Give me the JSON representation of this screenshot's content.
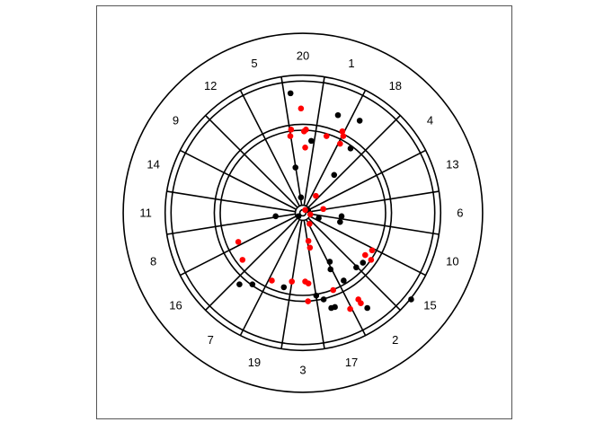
{
  "chart_data": {
    "type": "scatter",
    "title": "",
    "xlabel": "",
    "ylabel": "",
    "xlim": [
      -1,
      1
    ],
    "ylim": [
      -1,
      1
    ],
    "grid": false,
    "legend": "none",
    "board": {
      "sector_numbers": [
        "20",
        "1",
        "18",
        "4",
        "13",
        "6",
        "10",
        "15",
        "2",
        "17",
        "3",
        "19",
        "7",
        "16",
        "8",
        "11",
        "14",
        "9",
        "12",
        "5"
      ],
      "ring_radii": [
        0.016,
        0.04,
        0.434,
        0.465,
        0.692,
        0.723,
        0.943
      ],
      "number_radius": 0.825
    },
    "series": [
      {
        "color": "#000000",
        "points": [
          [
            -0.065,
            0.628
          ],
          [
            0.184,
            0.513
          ],
          [
            0.298,
            0.484
          ],
          [
            0.044,
            0.378
          ],
          [
            0.25,
            0.338
          ],
          [
            -0.039,
            0.238
          ],
          [
            0.164,
            0.199
          ],
          [
            -0.01,
            0.081
          ],
          [
            -0.143,
            -0.018
          ],
          [
            -0.023,
            -0.018
          ],
          [
            0.083,
            -0.028
          ],
          [
            0.203,
            -0.018
          ],
          [
            0.195,
            -0.048
          ],
          [
            0.141,
            -0.257
          ],
          [
            0.145,
            -0.297
          ],
          [
            0.28,
            -0.287
          ],
          [
            0.315,
            -0.262
          ],
          [
            0.214,
            -0.356
          ],
          [
            -0.1,
            -0.391
          ],
          [
            -0.265,
            -0.376
          ],
          [
            -0.333,
            -0.376
          ],
          [
            0.07,
            -0.435
          ],
          [
            0.109,
            -0.455
          ],
          [
            0.149,
            -0.5
          ],
          [
            0.168,
            -0.495
          ],
          [
            0.338,
            -0.5
          ],
          [
            0.568,
            -0.455
          ],
          [
            0.027,
            0.014
          ]
        ]
      },
      {
        "color": "#ff0000",
        "points": [
          [
            -0.01,
            0.548
          ],
          [
            -0.062,
            0.437
          ],
          [
            0.006,
            0.428
          ],
          [
            0.016,
            0.437
          ],
          [
            -0.066,
            0.403
          ],
          [
            0.012,
            0.343
          ],
          [
            0.124,
            0.403
          ],
          [
            0.207,
            0.428
          ],
          [
            0.212,
            0.403
          ],
          [
            0.195,
            0.363
          ],
          [
            0.068,
            0.089
          ],
          [
            0.107,
            0.02
          ],
          [
            0.012,
            0.015
          ],
          [
            0.039,
            -0.008
          ],
          [
            0.035,
            -0.058
          ],
          [
            0.029,
            -0.148
          ],
          [
            0.037,
            -0.183
          ],
          [
            0.363,
            -0.197
          ],
          [
            0.327,
            -0.222
          ],
          [
            0.358,
            -0.247
          ],
          [
            -0.339,
            -0.153
          ],
          [
            -0.317,
            -0.247
          ],
          [
            -0.163,
            -0.356
          ],
          [
            -0.058,
            -0.361
          ],
          [
            0.012,
            -0.361
          ],
          [
            0.029,
            -0.371
          ],
          [
            0.159,
            -0.406
          ],
          [
            0.291,
            -0.455
          ],
          [
            0.027,
            -0.465
          ],
          [
            0.248,
            -0.505
          ],
          [
            0.304,
            -0.475
          ]
        ]
      }
    ]
  }
}
